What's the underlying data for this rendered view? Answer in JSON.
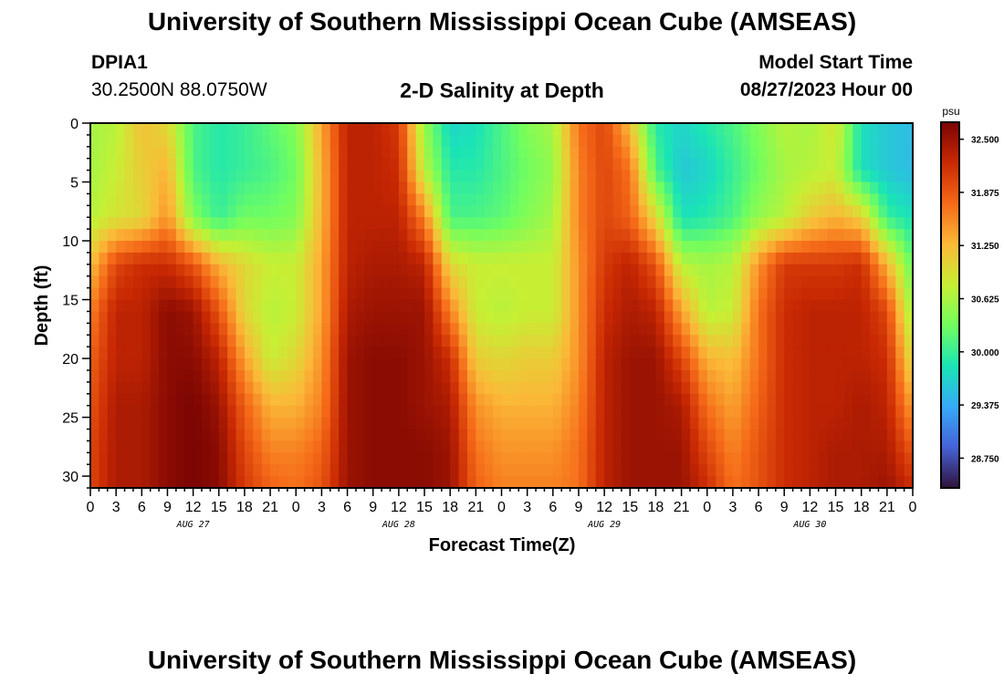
{
  "title": "University of Southern Mississippi Ocean Cube (AMSEAS)",
  "title_repeat": "University of Southern Mississippi Ocean Cube (AMSEAS)",
  "station": {
    "id": "DPIA1",
    "location": "30.2500N  88.0750W"
  },
  "model": {
    "start_label": "Model Start Time",
    "start_value": "08/27/2023 Hour 00"
  },
  "colors": {
    "scale": [
      "#30123b",
      "#4662d7",
      "#36aaf9",
      "#1ae4b6",
      "#72fe5e",
      "#c7ef34",
      "#fbb938",
      "#f56918",
      "#c92903",
      "#7a0403"
    ]
  },
  "chart_data": {
    "type": "heatmap",
    "title": "2-D Salinity at Depth",
    "xlabel": "Forecast Time(Z)",
    "ylabel": "Depth (ft)",
    "units": "psu",
    "x_tick_labels": [
      "0",
      "3",
      "6",
      "9",
      "12",
      "15",
      "18",
      "21",
      "0",
      "3",
      "6",
      "9",
      "12",
      "15",
      "18",
      "21",
      "0",
      "3",
      "6",
      "9",
      "12",
      "15",
      "18",
      "21",
      "0",
      "3",
      "6",
      "9",
      "12",
      "15",
      "18",
      "21",
      "0"
    ],
    "date_labels": [
      {
        "label": "AUG 27",
        "hour": 12
      },
      {
        "label": "AUG 28",
        "hour": 36
      },
      {
        "label": "AUG 29",
        "hour": 60
      },
      {
        "label": "AUG 30",
        "hour": 84
      }
    ],
    "xlim_hours": [
      0,
      96
    ],
    "ylim_ft": [
      0,
      31
    ],
    "y_ticks": [
      "0",
      "5",
      "10",
      "15",
      "20",
      "25",
      "30"
    ],
    "colorbar_ticks": [
      "32.500",
      "31.875",
      "31.250",
      "30.625",
      "30.000",
      "29.375",
      "28.750"
    ],
    "colorbar_range": [
      28.4,
      32.7
    ],
    "salinity_grid": {
      "times_hours": [
        0,
        3,
        6,
        9,
        12,
        15,
        18,
        21,
        24,
        27,
        30,
        33,
        36,
        39,
        42,
        45,
        48,
        51,
        54,
        57,
        60,
        63,
        66,
        69,
        72,
        75,
        78,
        81,
        84,
        87,
        90,
        93,
        96
      ],
      "depths_ft": [
        0,
        4,
        8,
        12,
        16,
        20,
        24,
        28,
        31
      ],
      "values_psu": [
        [
          30.6,
          30.7,
          31.2,
          31.0,
          30.1,
          29.9,
          30.0,
          30.2,
          30.4,
          31.4,
          32.3,
          32.3,
          32.1,
          30.5,
          29.7,
          29.8,
          30.1,
          30.4,
          30.6,
          31.7,
          32.0,
          31.2,
          29.9,
          29.7,
          29.9,
          30.1,
          30.4,
          30.7,
          30.6,
          30.9,
          29.8,
          29.6,
          29.5
        ],
        [
          30.6,
          30.8,
          31.1,
          31.3,
          30.1,
          29.9,
          30.0,
          30.1,
          30.3,
          31.3,
          32.3,
          32.3,
          32.2,
          30.7,
          29.9,
          29.9,
          30.1,
          30.3,
          30.5,
          31.6,
          32.0,
          31.7,
          30.1,
          29.6,
          29.7,
          30.0,
          30.3,
          30.6,
          30.7,
          30.8,
          29.8,
          29.6,
          29.5
        ],
        [
          30.7,
          30.9,
          31.0,
          31.5,
          30.4,
          30.0,
          30.3,
          30.3,
          30.4,
          31.3,
          32.3,
          32.3,
          32.3,
          31.6,
          30.1,
          30.1,
          30.2,
          30.4,
          30.6,
          31.6,
          32.0,
          31.8,
          31.0,
          29.8,
          29.9,
          30.1,
          30.5,
          30.7,
          31.1,
          31.3,
          31.1,
          30.0,
          29.8
        ],
        [
          31.2,
          32.0,
          32.2,
          32.2,
          31.9,
          31.3,
          31.0,
          30.8,
          30.8,
          31.4,
          32.3,
          32.4,
          32.4,
          32.3,
          31.0,
          30.8,
          30.8,
          30.8,
          30.8,
          31.5,
          32.1,
          32.3,
          31.9,
          30.7,
          30.6,
          30.7,
          31.5,
          32.1,
          32.1,
          32.1,
          32.2,
          31.3,
          30.2
        ],
        [
          31.6,
          32.3,
          32.3,
          32.6,
          32.5,
          31.9,
          31.0,
          30.7,
          30.8,
          31.4,
          32.4,
          32.5,
          32.5,
          32.5,
          31.6,
          30.8,
          30.7,
          30.8,
          30.8,
          31.5,
          32.2,
          32.4,
          32.3,
          31.4,
          30.7,
          30.8,
          31.7,
          32.2,
          32.3,
          32.3,
          32.3,
          32.0,
          30.5
        ],
        [
          31.8,
          32.3,
          32.3,
          32.6,
          32.6,
          32.3,
          31.4,
          30.8,
          31.0,
          31.5,
          32.5,
          32.6,
          32.6,
          32.5,
          32.2,
          31.1,
          31.0,
          31.1,
          31.1,
          31.5,
          32.3,
          32.5,
          32.5,
          32.0,
          31.3,
          31.2,
          31.7,
          32.2,
          32.3,
          32.3,
          32.3,
          32.2,
          30.9
        ],
        [
          31.9,
          32.4,
          32.4,
          32.6,
          32.7,
          32.5,
          31.8,
          31.3,
          31.3,
          31.6,
          32.5,
          32.6,
          32.6,
          32.5,
          32.4,
          31.5,
          31.3,
          31.3,
          31.3,
          31.6,
          32.3,
          32.5,
          32.5,
          32.4,
          31.7,
          31.4,
          31.8,
          32.2,
          32.3,
          32.3,
          32.4,
          32.3,
          31.4
        ],
        [
          32.0,
          32.4,
          32.4,
          32.6,
          32.7,
          32.6,
          32.0,
          31.6,
          31.6,
          31.8,
          32.5,
          32.6,
          32.6,
          32.6,
          32.5,
          31.7,
          31.5,
          31.5,
          31.5,
          31.7,
          32.3,
          32.5,
          32.5,
          32.5,
          32.0,
          31.6,
          31.9,
          32.2,
          32.3,
          32.4,
          32.4,
          32.4,
          31.9
        ],
        [
          32.0,
          32.4,
          32.4,
          32.6,
          32.7,
          32.6,
          32.1,
          31.8,
          31.7,
          31.9,
          32.5,
          32.6,
          32.6,
          32.6,
          32.5,
          31.8,
          31.6,
          31.6,
          31.6,
          31.7,
          32.3,
          32.5,
          32.5,
          32.5,
          32.2,
          31.7,
          31.9,
          32.2,
          32.3,
          32.4,
          32.4,
          32.5,
          32.2
        ]
      ]
    }
  }
}
